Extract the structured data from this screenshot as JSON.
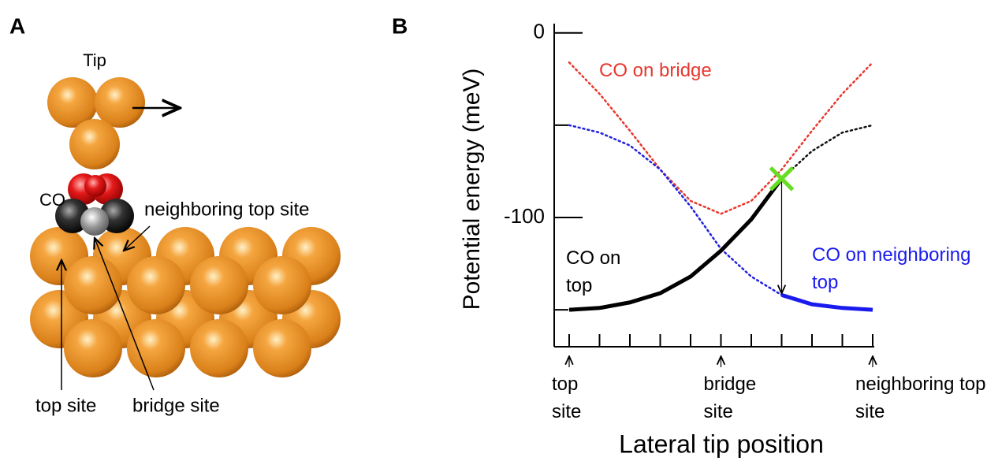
{
  "panels": [
    "A",
    "B"
  ],
  "diagram": {
    "tip": "Tip",
    "molecule": "CO",
    "neighboring_site": "neighboring top site",
    "top_site": "top site",
    "bridge_site": "bridge site"
  },
  "chart_data": {
    "type": "line",
    "ylabel": "Potential energy (meV)",
    "xlabel": "Lateral tip position",
    "x": [
      0,
      0.1,
      0.2,
      0.3,
      0.4,
      0.5,
      0.6,
      0.7,
      0.8,
      0.9,
      1
    ],
    "xlim": [
      0,
      1
    ],
    "xticks": [
      {
        "value": 0,
        "label": "top site"
      },
      {
        "value": 0.5,
        "label": "bridge site"
      },
      {
        "value": 1,
        "label": "neighboring top site"
      }
    ],
    "xminor_ticks": [
      0,
      0.1,
      0.2,
      0.3,
      0.4,
      0.5,
      0.6,
      0.7,
      0.8,
      0.9,
      1
    ],
    "ylim": [
      -170,
      5
    ],
    "yticks": [
      0,
      -100
    ],
    "yminor_ticks": [
      -50,
      -150
    ],
    "series": [
      {
        "name": "CO on bridge",
        "color": "#e8372d",
        "dashed": true,
        "values": [
          -16,
          -33,
          -53,
          -74,
          -91,
          -98,
          -91,
          -74,
          -53,
          -33,
          -16
        ]
      },
      {
        "color": "#111111",
        "dashed": true,
        "values": [
          null,
          null,
          null,
          null,
          null,
          null,
          null,
          -79,
          -64,
          -54,
          -50
        ]
      },
      {
        "color": "#2222dd",
        "dashed": true,
        "values": [
          -50,
          -54,
          -61,
          -74,
          -94,
          -117,
          -132,
          -142,
          null,
          null,
          null
        ]
      },
      {
        "name": "CO on top",
        "color": "#000000",
        "dashed": false,
        "values": [
          -150,
          -149,
          -146,
          -141,
          -132,
          -118,
          -101,
          -79,
          null,
          null,
          null
        ]
      },
      {
        "name": "CO on neighboring top",
        "color": "#1a1aee",
        "dashed": false,
        "values": [
          null,
          null,
          null,
          null,
          null,
          null,
          null,
          -142,
          -147,
          -149,
          -150
        ]
      }
    ],
    "crossing": {
      "x": 0.7,
      "y": -79,
      "color": "#66dd22"
    },
    "jump": {
      "x": 0.7,
      "from": -79,
      "to": -142
    }
  }
}
